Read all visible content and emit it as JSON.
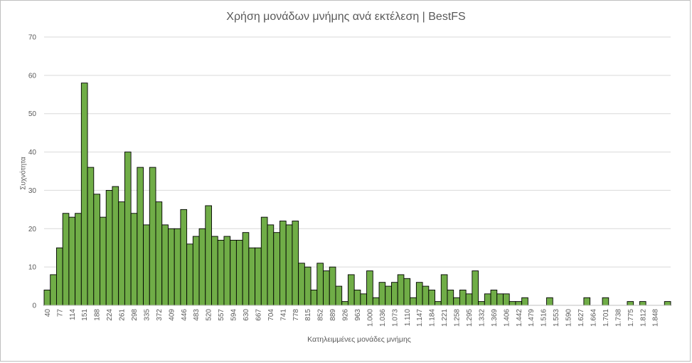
{
  "chart_data": {
    "type": "bar",
    "title": "Χρήση μονάδων μνήμης ανά εκτέλεση | BestFS",
    "xlabel": "Κατηλειμμένες μονάδες μνήμης",
    "ylabel": "Συχνότητα",
    "ylim": [
      0,
      70
    ],
    "yticks": [
      0,
      10,
      20,
      30,
      40,
      50,
      60,
      70
    ],
    "grid": true,
    "bar_color": "#70ad47",
    "bar_edge_color": "#000000",
    "x_tick_labels": [
      "40",
      "77",
      "114",
      "151",
      "188",
      "224",
      "261",
      "298",
      "335",
      "372",
      "409",
      "446",
      "483",
      "520",
      "557",
      "594",
      "630",
      "667",
      "704",
      "741",
      "778",
      "815",
      "852",
      "889",
      "926",
      "963",
      "1.000",
      "1.036",
      "1.073",
      "1.110",
      "1.147",
      "1.184",
      "1.221",
      "1.258",
      "1.295",
      "1.332",
      "1.369",
      "1.406",
      "1.442",
      "1.479",
      "1.516",
      "1.553",
      "1.590",
      "1.627",
      "1.664",
      "1.701",
      "1.738",
      "1.775",
      "1.812",
      "1.848"
    ],
    "values": [
      4,
      8,
      15,
      24,
      23,
      24,
      58,
      36,
      29,
      23,
      30,
      31,
      27,
      40,
      24,
      36,
      21,
      36,
      27,
      21,
      20,
      20,
      25,
      16,
      18,
      20,
      26,
      18,
      17,
      18,
      17,
      17,
      19,
      15,
      15,
      23,
      21,
      19,
      22,
      21,
      22,
      11,
      10,
      4,
      11,
      9,
      10,
      5,
      1,
      8,
      4,
      3,
      9,
      2,
      6,
      5,
      6,
      8,
      7,
      2,
      6,
      5,
      4,
      1,
      8,
      4,
      2,
      4,
      3,
      9,
      1,
      3,
      4,
      3,
      3,
      1,
      1,
      2,
      0,
      0,
      0,
      2,
      0,
      0,
      0,
      0,
      0,
      2,
      0,
      0,
      2,
      0,
      0,
      0,
      1,
      0,
      1,
      0,
      0,
      0,
      1
    ]
  }
}
